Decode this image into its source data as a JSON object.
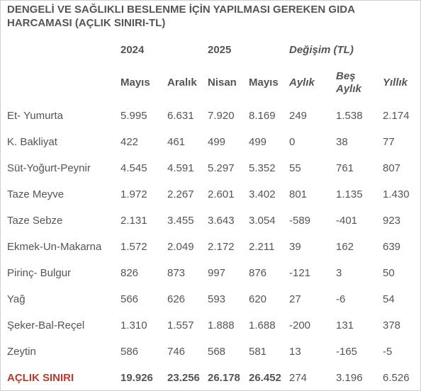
{
  "title": "DENGELİ VE SAĞLIKLI BESLENME İÇİN YAPILMASI GEREKEN GIDA HARCAMASI (AÇLIK SINIRI-TL)",
  "group_headers": {
    "y2024": "2024",
    "y2025": "2025",
    "change": "Değişim (TL)"
  },
  "sub_headers": [
    "Mayıs",
    "Aralık",
    "Nisan",
    "Mayıs",
    "Aylık",
    "Beş Aylık",
    "Yıllık"
  ],
  "rows": [
    {
      "label": "Et- Yumurta",
      "values": [
        "5.995",
        "6.631",
        "7.920",
        "8.169",
        "249",
        "1.538",
        "2.174"
      ]
    },
    {
      "label": "K. Bakliyat",
      "values": [
        "422",
        "461",
        "499",
        "499",
        "0",
        "38",
        "77"
      ]
    },
    {
      "label": "Süt-Yoğurt-Peynir",
      "values": [
        "4.545",
        "4.591",
        "5.297",
        "5.352",
        "55",
        "761",
        "807"
      ]
    },
    {
      "label": "Taze Meyve",
      "values": [
        "1.972",
        "2.267",
        "2.601",
        "3.402",
        "801",
        "1.135",
        "1.430"
      ]
    },
    {
      "label": "Taze Sebze",
      "values": [
        "2.131",
        "3.455",
        "3.643",
        "3.054",
        "-589",
        "-401",
        "923"
      ]
    },
    {
      "label": "Ekmek-Un-Makarna",
      "values": [
        "1.572",
        "2.049",
        "2.172",
        "2.211",
        "39",
        "162",
        "639"
      ]
    },
    {
      "label": "Pirinç- Bulgur",
      "values": [
        "826",
        "873",
        "997",
        "876",
        "-121",
        "3",
        "50"
      ]
    },
    {
      "label": "Yağ",
      "values": [
        "566",
        "626",
        "593",
        "620",
        "27",
        "-6",
        "54"
      ]
    },
    {
      "label": "Şeker-Bal-Reçel",
      "values": [
        "1.310",
        "1.557",
        "1.888",
        "1.688",
        "-200",
        "131",
        "378"
      ]
    },
    {
      "label": "Zeytin",
      "values": [
        "586",
        "746",
        "568",
        "581",
        "13",
        "-165",
        "-5"
      ]
    }
  ],
  "total": {
    "label": "AÇLIK SINIRI",
    "values": [
      "19.926",
      "23.256",
      "26.178",
      "26.452",
      "274",
      "3.196",
      "6.526"
    ]
  },
  "colors": {
    "text": "#555555",
    "total_label": "#c0392b",
    "border": "#cfcfcf"
  }
}
